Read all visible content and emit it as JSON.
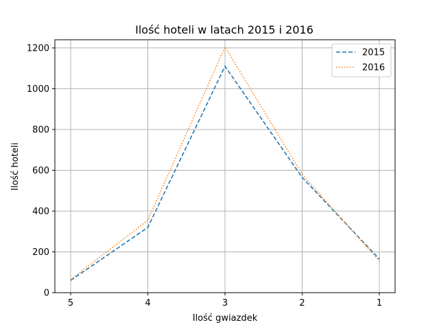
{
  "chart_data": {
    "type": "line",
    "title": "Ilość hoteli w latach 2015 i 2016",
    "xlabel": "Ilość gwiazdek",
    "ylabel": "Ilość hoteli",
    "categories": [
      "5",
      "4",
      "3",
      "2",
      "1"
    ],
    "ylim": [
      0,
      1240
    ],
    "yticks": [
      0,
      200,
      400,
      600,
      800,
      1000,
      1200
    ],
    "grid": true,
    "legend_position": "top-right",
    "series": [
      {
        "name": "2015",
        "values": [
          60,
          320,
          1110,
          565,
          165
        ],
        "color": "#1f77b4",
        "style": "dashed"
      },
      {
        "name": "2016",
        "values": [
          65,
          355,
          1205,
          580,
          155
        ],
        "color": "#ff7f0e",
        "style": "dotted"
      }
    ]
  }
}
